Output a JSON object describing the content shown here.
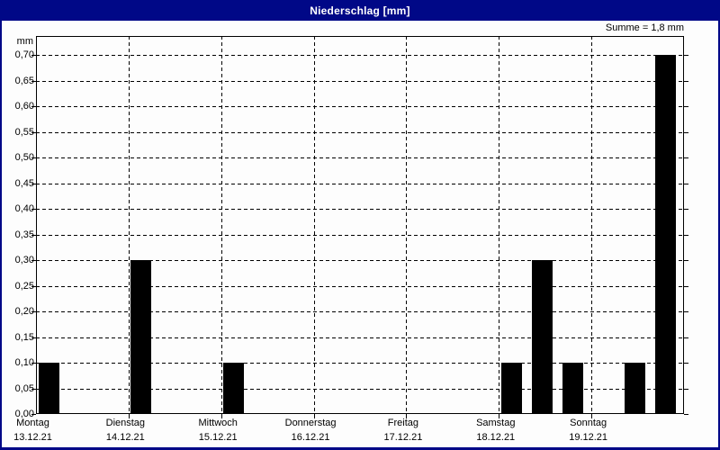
{
  "window": {
    "title": "Niederschlag [mm]"
  },
  "header": {
    "sum_label": "Summe = 1,8 mm",
    "unit_label": "mm"
  },
  "colors": {
    "titlebar": "#000887",
    "title_text": "#ffffff",
    "window_background": "#fdfdfd",
    "bar": "#000000",
    "grid": "#000000",
    "text": "#000000"
  },
  "chart_data": {
    "type": "bar",
    "title": "Niederschlag [mm]",
    "ylabel": "mm",
    "xlabel": "",
    "ylim": [
      0,
      0.7
    ],
    "ytick_interval": 0.05,
    "ytick_labels": [
      "0,70",
      "0,65",
      "0,60",
      "0,55",
      "0,50",
      "0,45",
      "0,40",
      "0,35",
      "0,30",
      "0,25",
      "0,20",
      "0,15",
      "0,10",
      "0,05",
      "0,00"
    ],
    "grid": "dashed",
    "legend_position": "none",
    "annotation": "Summe = 1,8 mm",
    "sum_mm": 1.8,
    "slots_per_day": 3,
    "days": [
      {
        "name": "Montag",
        "date": "13.12.21",
        "bars": [
          {
            "slot": 0,
            "value": 0.1
          }
        ]
      },
      {
        "name": "Dienstag",
        "date": "14.12.21",
        "bars": [
          {
            "slot": 0,
            "value": 0.3
          }
        ]
      },
      {
        "name": "Mittwoch",
        "date": "15.12.21",
        "bars": [
          {
            "slot": 0,
            "value": 0.1
          }
        ]
      },
      {
        "name": "Donnerstag",
        "date": "16.12.21",
        "bars": []
      },
      {
        "name": "Freitag",
        "date": "17.12.21",
        "bars": []
      },
      {
        "name": "Samstag",
        "date": "18.12.21",
        "bars": [
          {
            "slot": 0,
            "value": 0.1
          },
          {
            "slot": 1,
            "value": 0.3
          },
          {
            "slot": 2,
            "value": 0.1
          }
        ]
      },
      {
        "name": "Sonntag",
        "date": "19.12.21",
        "bars": [
          {
            "slot": 1,
            "value": 0.1
          },
          {
            "slot": 2,
            "value": 0.7
          }
        ]
      }
    ]
  }
}
